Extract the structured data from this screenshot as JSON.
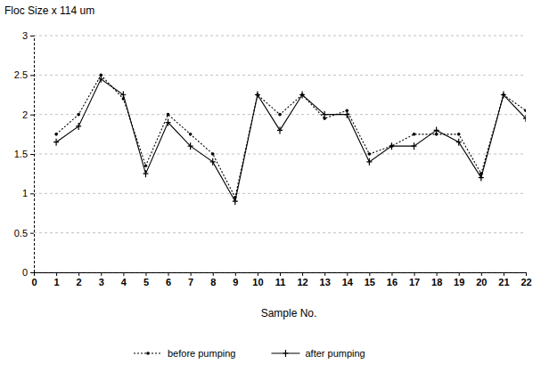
{
  "chart_data": {
    "type": "line",
    "y_label": "Floc Size x 114 um",
    "x_label": "Sample No.",
    "x": [
      1,
      2,
      3,
      4,
      5,
      6,
      7,
      8,
      9,
      10,
      11,
      12,
      13,
      14,
      15,
      16,
      17,
      18,
      19,
      20,
      21,
      22
    ],
    "series": [
      {
        "name": "before pumping",
        "color": "#000000",
        "marker": "circle",
        "line_style": "dotted",
        "values": [
          1.75,
          2.0,
          2.5,
          2.2,
          1.35,
          2.0,
          1.75,
          1.5,
          0.95,
          2.25,
          2.0,
          2.25,
          1.95,
          2.05,
          1.5,
          1.6,
          1.75,
          1.75,
          1.75,
          1.25,
          2.25,
          2.05
        ]
      },
      {
        "name": "after pumping",
        "color": "#000000",
        "marker": "plus",
        "line_style": "solid",
        "values": [
          1.65,
          1.85,
          2.45,
          2.25,
          1.25,
          1.9,
          1.6,
          1.4,
          0.9,
          2.25,
          1.8,
          2.25,
          2.0,
          2.0,
          1.4,
          1.6,
          1.6,
          1.8,
          1.65,
          1.2,
          2.25,
          1.95
        ]
      }
    ],
    "xlim": [
      0,
      22
    ],
    "xticks": [
      0,
      1,
      2,
      3,
      4,
      5,
      6,
      7,
      8,
      9,
      10,
      11,
      12,
      13,
      14,
      15,
      16,
      17,
      18,
      19,
      20,
      21,
      22
    ],
    "ylim": [
      0,
      3
    ],
    "yticks": [
      0,
      0.5,
      1,
      1.5,
      2,
      2.5,
      3
    ],
    "grid": true,
    "legend": "bottom"
  }
}
